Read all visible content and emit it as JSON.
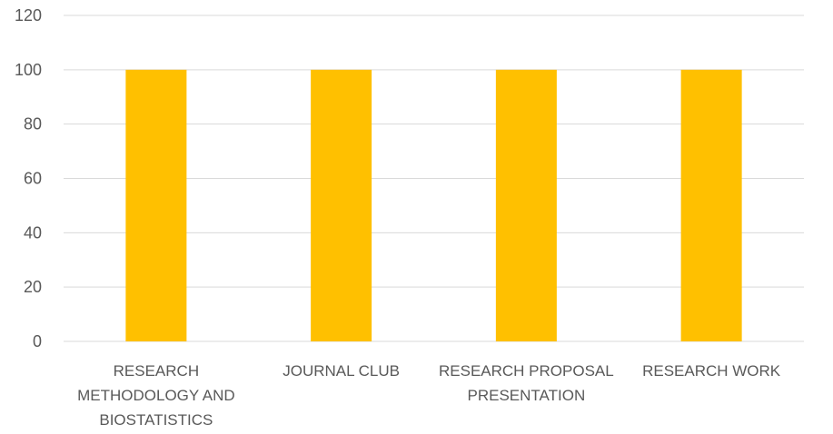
{
  "chart_data": {
    "type": "bar",
    "categories": [
      [
        "RESEARCH",
        "METHODOLOGY AND",
        "BIOSTATISTICS"
      ],
      [
        "JOURNAL CLUB"
      ],
      [
        "RESEARCH PROPOSAL",
        "PRESENTATION"
      ],
      [
        "RESEARCH WORK"
      ]
    ],
    "values": [
      100,
      100,
      100,
      100
    ],
    "ylim": [
      0,
      120
    ],
    "yticks": [
      0,
      20,
      40,
      60,
      80,
      100,
      120
    ],
    "title": "",
    "xlabel": "",
    "ylabel": "",
    "grid": true,
    "legend": "none",
    "colors": {
      "bar": "#FFC000",
      "grid": "#D9D9D9",
      "text": "#595959"
    }
  }
}
